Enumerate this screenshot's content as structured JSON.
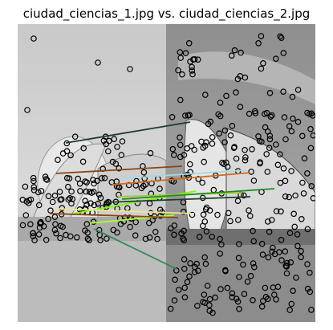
{
  "figure": {
    "title": "ciudad_ciencias_1.jpg vs. ciudad_ciencias_2.jpg"
  },
  "matches": {
    "colors": [
      "#1f3d2b",
      "#8b4513",
      "#a6d8e0",
      "#d2691e",
      "#7cfc00",
      "#9acd32",
      "#228b22",
      "#f0e68c",
      "#adff2f",
      "#2e8b57"
    ]
  }
}
